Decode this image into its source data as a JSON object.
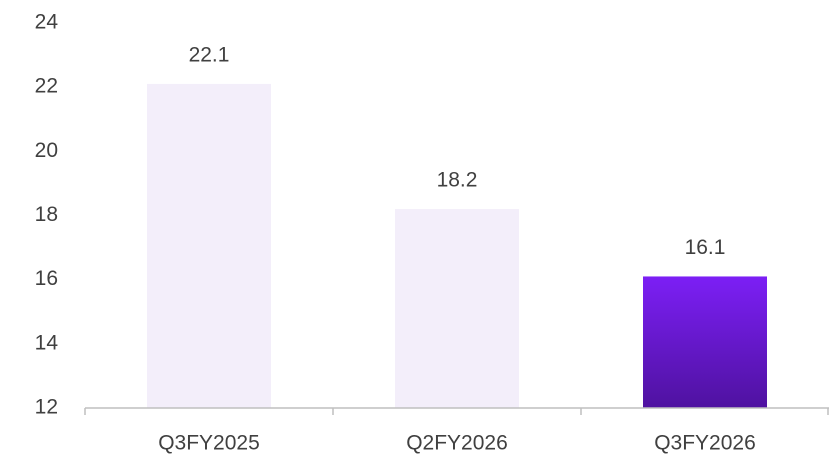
{
  "chart_data": {
    "type": "bar",
    "categories": [
      "Q3FY2025",
      "Q2FY2026",
      "Q3FY2026"
    ],
    "values": [
      22.1,
      18.2,
      16.1
    ],
    "colors": [
      "#f3eefa",
      "#f3eefa",
      [
        "#7c1ff5",
        "#4f12a0"
      ]
    ],
    "ylim": [
      12,
      24
    ],
    "yticks": [
      12,
      14,
      16,
      18,
      20,
      22,
      24
    ],
    "grid": false
  }
}
